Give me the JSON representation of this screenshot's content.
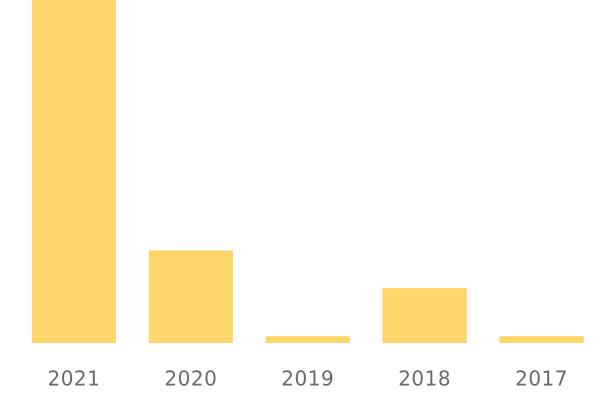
{
  "chart_data": {
    "type": "bar",
    "categories": [
      "2021",
      "2020",
      "2019",
      "2018",
      "2017"
    ],
    "values": [
      100,
      27,
      2,
      16,
      2
    ],
    "color": "#fed66b",
    "ylim": [
      0,
      100
    ]
  }
}
